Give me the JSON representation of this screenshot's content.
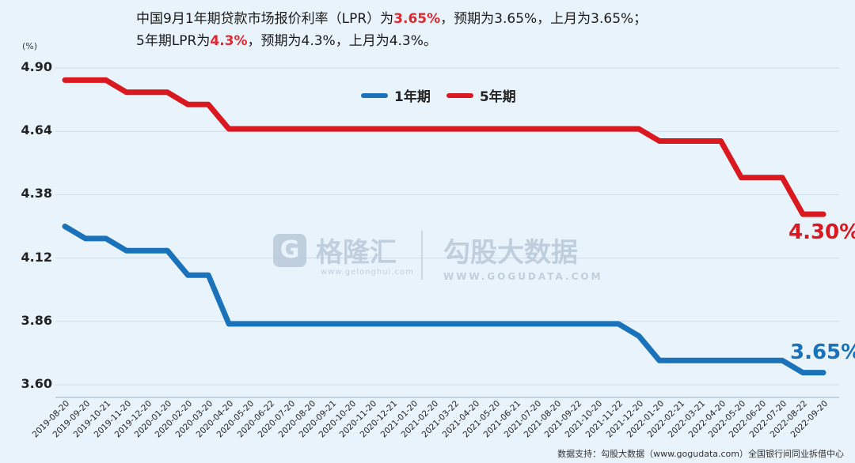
{
  "headline": {
    "line1_pre": "中国9月1年期贷款市场报价利率（LPR）为",
    "line1_hl": "3.65%",
    "line1_post": "，预期为3.65%，上月为3.65%；",
    "line2_pre": "5年期LPR为",
    "line2_hl": "4.3%",
    "line2_post": "，预期为4.3%，上月为4.3%。"
  },
  "watermark": {
    "brand1": "格隆汇",
    "brand1_url": "www.gelonghui.com",
    "brand2": "勾股大数据",
    "brand2_url": "WWW.GOGUDATA.COM"
  },
  "source": "数据支持：勾股大数据（www.gogudata.com）全国银行间同业拆借中心",
  "colors": {
    "series_1y": "#1a72bb",
    "series_5y": "#d9191f",
    "grid": "#cfdbe6"
  },
  "chart_data": {
    "type": "line",
    "ylabel": "(%)",
    "ylim": [
      3.6,
      4.9
    ],
    "yticks": [
      "4.90",
      "4.64",
      "4.38",
      "4.12",
      "3.86",
      "3.60"
    ],
    "x": [
      "2019-08-20",
      "2019-09-20",
      "2019-10-21",
      "2019-11-20",
      "2019-12-20",
      "2020-01-20",
      "2020-02-20",
      "2020-03-20",
      "2020-04-20",
      "2020-05-20",
      "2020-06-22",
      "2020-07-20",
      "2020-08-20",
      "2020-09-21",
      "2020-10-20",
      "2020-11-20",
      "2020-12-21",
      "2021-01-20",
      "2021-02-20",
      "2021-03-22",
      "2021-04-20",
      "2021-05-20",
      "2021-06-21",
      "2021-07-20",
      "2021-08-20",
      "2021-09-22",
      "2021-10-20",
      "2021-11-22",
      "2021-12-20",
      "2022-01-20",
      "2022-02-21",
      "2022-03-21",
      "2022-04-20",
      "2022-05-20",
      "2022-06-20",
      "2022-07-20",
      "2022-08-22",
      "2022-09-20"
    ],
    "series": [
      {
        "name": "1年期",
        "values": [
          4.25,
          4.2,
          4.2,
          4.15,
          4.15,
          4.15,
          4.05,
          4.05,
          3.85,
          3.85,
          3.85,
          3.85,
          3.85,
          3.85,
          3.85,
          3.85,
          3.85,
          3.85,
          3.85,
          3.85,
          3.85,
          3.85,
          3.85,
          3.85,
          3.85,
          3.85,
          3.85,
          3.85,
          3.8,
          3.7,
          3.7,
          3.7,
          3.7,
          3.7,
          3.7,
          3.7,
          3.65,
          3.65
        ],
        "end_label": "3.65%"
      },
      {
        "name": "5年期",
        "values": [
          4.85,
          4.85,
          4.85,
          4.8,
          4.8,
          4.8,
          4.75,
          4.75,
          4.65,
          4.65,
          4.65,
          4.65,
          4.65,
          4.65,
          4.65,
          4.65,
          4.65,
          4.65,
          4.65,
          4.65,
          4.65,
          4.65,
          4.65,
          4.65,
          4.65,
          4.65,
          4.65,
          4.65,
          4.65,
          4.6,
          4.6,
          4.6,
          4.6,
          4.45,
          4.45,
          4.45,
          4.3,
          4.3
        ],
        "end_label": "4.30%"
      }
    ],
    "legend": "top-center",
    "grid": true
  }
}
